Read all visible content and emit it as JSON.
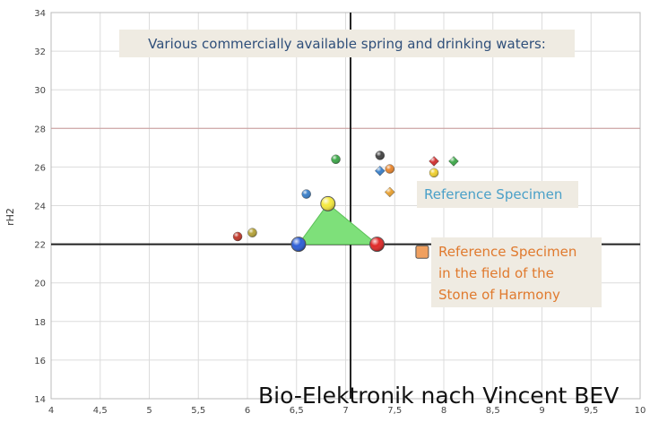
{
  "chart_data": {
    "type": "scatter",
    "title": "",
    "xlabel": "",
    "ylabel": "rH2",
    "xlim": [
      4,
      10
    ],
    "ylim": [
      14,
      34
    ],
    "x_ticks": [
      "4",
      "4,5",
      "5",
      "5,5",
      "6",
      "6,5",
      "7",
      "7,5",
      "8",
      "8,5",
      "9",
      "9,5",
      "10"
    ],
    "y_ticks": [
      "14",
      "16",
      "18",
      "20",
      "22",
      "24",
      "26",
      "28",
      "30",
      "32",
      "34"
    ],
    "x_tick_values": [
      4,
      4.5,
      5,
      5.5,
      6,
      6.5,
      7,
      7.5,
      8,
      8.5,
      9,
      9.5,
      10
    ],
    "y_tick_values": [
      14,
      16,
      18,
      20,
      22,
      24,
      26,
      28,
      30,
      32,
      34
    ],
    "grid": true,
    "reference_lines": {
      "x": 7.05,
      "y": 22,
      "y_red": 28
    },
    "points": [
      {
        "x": 5.9,
        "y": 22.4,
        "color": "#c0392b",
        "shape": "sphere"
      },
      {
        "x": 6.05,
        "y": 22.6,
        "color": "#b5a33a",
        "shape": "sphere"
      },
      {
        "x": 6.6,
        "y": 24.6,
        "color": "#3a7fc8",
        "shape": "sphere"
      },
      {
        "x": 6.9,
        "y": 26.4,
        "color": "#3ea84a",
        "shape": "sphere"
      },
      {
        "x": 7.35,
        "y": 26.6,
        "color": "#444444",
        "shape": "sphere"
      },
      {
        "x": 7.35,
        "y": 25.8,
        "color": "#3a7fc8",
        "shape": "diamond"
      },
      {
        "x": 7.45,
        "y": 25.9,
        "color": "#e8862e",
        "shape": "sphere"
      },
      {
        "x": 7.45,
        "y": 24.7,
        "color": "#e8a030",
        "shape": "diamond"
      },
      {
        "x": 7.9,
        "y": 26.3,
        "color": "#d03030",
        "shape": "diamond"
      },
      {
        "x": 7.9,
        "y": 25.7,
        "color": "#f0d030",
        "shape": "sphere"
      },
      {
        "x": 8.1,
        "y": 26.3,
        "color": "#3ea84a",
        "shape": "diamond"
      }
    ],
    "triangle": [
      {
        "x": 6.52,
        "y": 22.0,
        "color": "#2e5fd6"
      },
      {
        "x": 6.82,
        "y": 24.1,
        "color": "#f5e93e"
      },
      {
        "x": 7.32,
        "y": 22.0,
        "color": "#e02828"
      }
    ],
    "triangle_fill": "#7ee07a",
    "reference_specimen_stone": {
      "x": 7.78,
      "y": 21.6,
      "color": "#f0a060"
    },
    "annotations": {
      "banner": "Various commercially available spring and drinking waters:",
      "reference": "Reference Specimen",
      "stone_line1": "Reference Specimen",
      "stone_line2": "in the field of the",
      "stone_line3": "Stone of Harmony"
    },
    "footer": "Bio-Elektronik nach Vincent BEV"
  }
}
